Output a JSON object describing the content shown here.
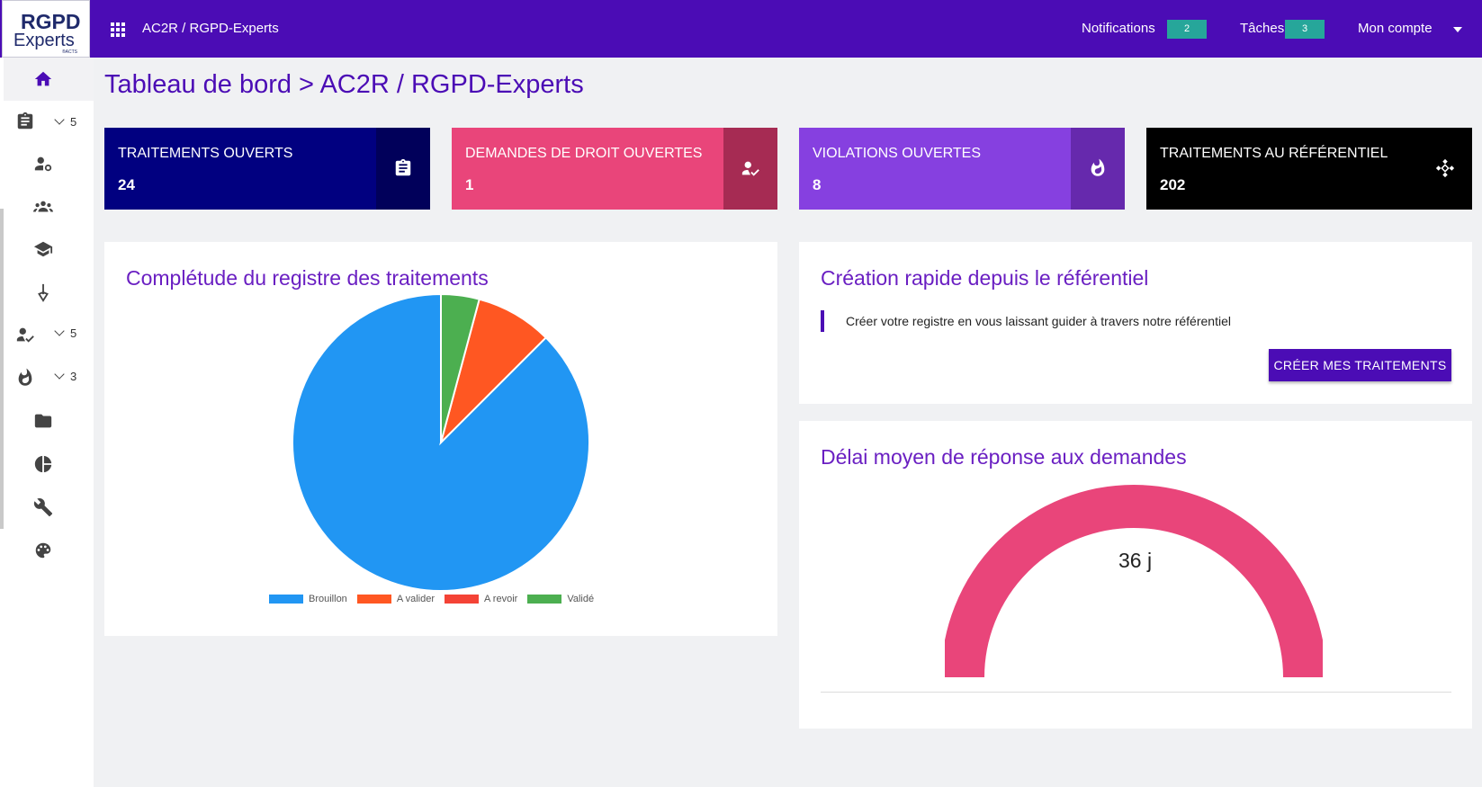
{
  "topbar": {
    "logo_line1": "RGPD",
    "logo_line2": "Experts",
    "logo_small": "®ACTS",
    "breadcrumb": "AC2R / RGPD-Experts",
    "notifications_label": "Notifications",
    "notifications_count": "2",
    "tasks_label": "Tâches",
    "tasks_count": "3",
    "account_label": "Mon compte",
    "color": "#4b0cb5"
  },
  "sidebar": {
    "items": [
      {
        "icon": "home-icon",
        "count": ""
      },
      {
        "icon": "clipboard-icon",
        "count": "5"
      },
      {
        "icon": "user-settings-icon",
        "count": ""
      },
      {
        "icon": "group-icon",
        "count": ""
      },
      {
        "icon": "graduation-cap-icon",
        "count": ""
      },
      {
        "icon": "pen-nib-icon",
        "count": ""
      },
      {
        "icon": "user-check-icon",
        "count": "5"
      },
      {
        "icon": "fire-icon",
        "count": "3"
      },
      {
        "icon": "folder-icon",
        "count": ""
      },
      {
        "icon": "pie-chart-icon",
        "count": ""
      },
      {
        "icon": "wrench-icon",
        "count": ""
      },
      {
        "icon": "palette-icon",
        "count": ""
      }
    ]
  },
  "page_title": "Tableau de bord > AC2R / RGPD-Experts",
  "stats": [
    {
      "label": "TRAITEMENTS OUVERTS",
      "value": "24",
      "color": "#010080",
      "icon_color": "#01005a",
      "icon": "clipboard-icon"
    },
    {
      "label": "DEMANDES DE DROIT OUVERTES",
      "value": "1",
      "color": "#e9457a",
      "icon_color": "#a62b53",
      "icon": "user-check-icon"
    },
    {
      "label": "VIOLATIONS OUVERTES",
      "value": "8",
      "color": "#8640e0",
      "icon_color": "#6629ad",
      "icon": "fire-icon"
    },
    {
      "label": "TRAITEMENTS AU RÉFÉRENTIEL",
      "value": "202",
      "color": "#000000",
      "icon_color": "#000000",
      "icon": "diamond-arrows-icon"
    }
  ],
  "completude": {
    "title": "Complétude du registre des traitements",
    "chart_data": {
      "type": "pie",
      "categories": [
        "Brouillon",
        "A valider",
        "A revoir",
        "Validé"
      ],
      "values": [
        21,
        2,
        0,
        1
      ],
      "colors": [
        "#2196f3",
        "#ff5722",
        "#f44336",
        "#4caf50"
      ],
      "legend": "bottom"
    }
  },
  "creation": {
    "title": "Création rapide depuis le référentiel",
    "description": "Créer votre registre en vous laissant guider à travers notre référentiel",
    "button_label": "CRÉER MES TRAITEMENTS"
  },
  "delai": {
    "title": "Délai moyen de réponse aux demandes",
    "value_text": "36 j",
    "gauge_fraction": 1.0,
    "color": "#e9457a"
  }
}
